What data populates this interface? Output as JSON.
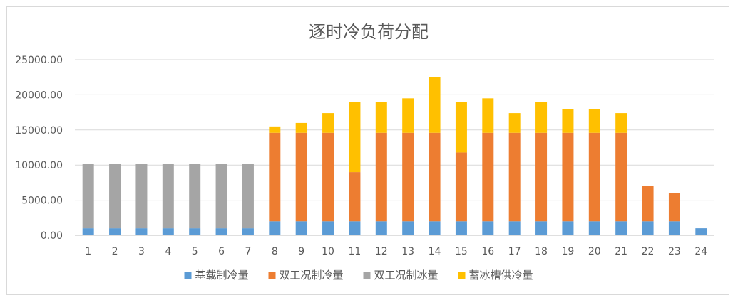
{
  "chart_data": {
    "type": "bar",
    "stacked": true,
    "title": "逐时冷负荷分配",
    "xlabel": "",
    "ylabel": "",
    "ylim": [
      0,
      25000
    ],
    "yticks": [
      "0.00",
      "5000.00",
      "10000.00",
      "15000.00",
      "20000.00",
      "25000.00"
    ],
    "categories": [
      "1",
      "2",
      "3",
      "4",
      "5",
      "6",
      "7",
      "8",
      "9",
      "10",
      "11",
      "12",
      "13",
      "14",
      "15",
      "16",
      "17",
      "18",
      "19",
      "20",
      "21",
      "22",
      "23",
      "24"
    ],
    "grid": true,
    "legend_position": "bottom",
    "series": [
      {
        "name": "基载制冷量",
        "color": "#5B9BD5",
        "values": [
          1000,
          1000,
          1000,
          1000,
          1000,
          1000,
          1000,
          2000,
          2000,
          2000,
          2000,
          2000,
          2000,
          2000,
          2000,
          2000,
          2000,
          2000,
          2000,
          2000,
          2000,
          2000,
          2000,
          1000
        ]
      },
      {
        "name": "双工况制冷量",
        "color": "#ED7D31",
        "values": [
          0,
          0,
          0,
          0,
          0,
          0,
          0,
          12600,
          12600,
          12600,
          7000,
          12600,
          12600,
          12600,
          9800,
          12600,
          12600,
          12600,
          12600,
          12600,
          12600,
          5000,
          4000,
          0
        ]
      },
      {
        "name": "双工况制冰量",
        "color": "#A5A5A5",
        "values": [
          9200,
          9200,
          9200,
          9200,
          9200,
          9200,
          9200,
          0,
          0,
          0,
          0,
          0,
          0,
          0,
          0,
          0,
          0,
          0,
          0,
          0,
          0,
          0,
          0,
          0
        ]
      },
      {
        "name": "蓄冰槽供冷量",
        "color": "#FFC000",
        "values": [
          0,
          0,
          0,
          0,
          0,
          0,
          0,
          900,
          1400,
          2800,
          10000,
          4400,
          4900,
          7900,
          7200,
          4900,
          2800,
          4400,
          3400,
          3400,
          2800,
          0,
          0,
          0
        ]
      }
    ]
  }
}
